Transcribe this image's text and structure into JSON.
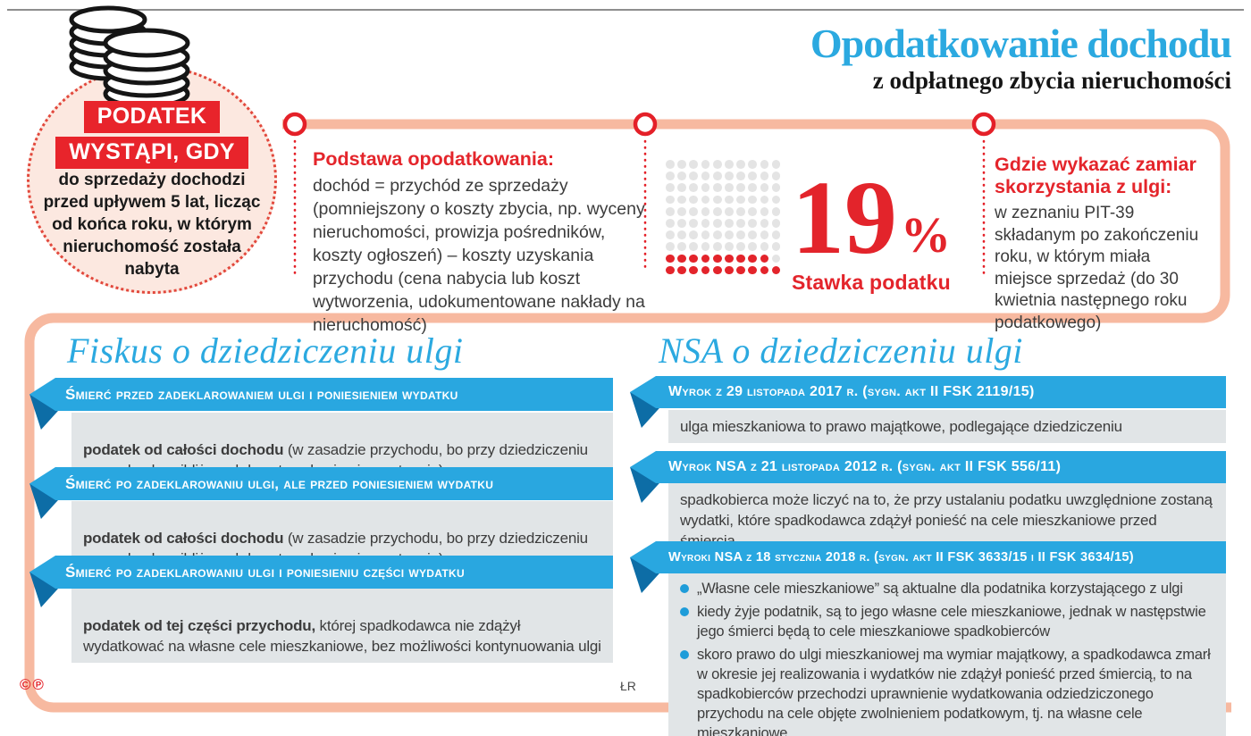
{
  "meta": {
    "copyright": "©℗",
    "credit": "ŁR"
  },
  "header": {
    "title": "Opodatkowanie dochodu",
    "subtitle": "z odpłatnego zbycia nieruchomości"
  },
  "tax_trigger": {
    "label_line1": "PODATEK",
    "label_line2": "WYSTĄPI, GDY",
    "text": "do sprzedaży dochodzi\nprzed upływem 5 lat, licząc\nod końca roku, w którym\nnieruchomość została\nnabyta"
  },
  "tax_base": {
    "heading": "Podstawa opodatkowania:",
    "body": "dochód = przychód ze sprzedaży (pomniejszony o koszty zbycia, np. wyceny nieruchomości, prowizja pośredników, koszty ogłoszeń) – koszty uzyskania przychodu (cena nabycia lub koszt wytworzenia, udokumentowane nakłady na nieruchomość)"
  },
  "tax_rate": {
    "value": "19",
    "unit": "%",
    "label": "Stawka podatku"
  },
  "where_to_declare": {
    "heading": "Gdzie wykazać zamiar\nskorzystania z ulgi:",
    "body": "w zeznaniu PIT-39 składanym po zakończeniu roku, w którym miała miejsce sprzedaż (do 30 kwietnia następnego roku podatkowego)"
  },
  "chart_data": {
    "type": "pictogram",
    "title": "Stawka podatku",
    "label": "19%",
    "value": 19,
    "total": 100,
    "grid": {
      "rows": 10,
      "cols": 10
    },
    "fill_from": "bottom-left",
    "colors": {
      "highlighted": "#E3242B",
      "base": "#E4E4E4"
    }
  },
  "fiskus": {
    "title": "Fiskus o dziedziczeniu ulgi",
    "items": [
      {
        "banner": "Śmierć przed zadeklarowaniem ulgi i poniesieniem wydatku",
        "bold": "podatek od całości dochodu",
        "rest": " (w zasadzie przychodu, bo przy dziedziczeniu po osobach najbliższych koszty nabycia nie występują)"
      },
      {
        "banner": "Śmierć po zadeklarowaniu ulgi, ale przed poniesieniem wydatku",
        "bold": "podatek od całości dochodu",
        "rest": " (w zasadzie przychodu, bo przy dziedziczeniu po osobach najbliższych koszty nabycia nie występują)"
      },
      {
        "banner": "Śmierć po zadeklarowaniu ulgi i poniesieniu części wydatku",
        "bold": "podatek od tej części przychodu,",
        "rest": " której spadkodawca nie zdążył wydatkować na własne cele mieszkaniowe, bez możliwości kontynuowania ulgi"
      }
    ]
  },
  "nsa": {
    "title": "NSA o dziedziczeniu ulgi",
    "items": [
      {
        "banner": "Wyrok z 29 listopada 2017 r. (sygn. akt II FSK 2119/15)",
        "text": "ulga mieszkaniowa to prawo majątkowe, podlegające dziedziczeniu"
      },
      {
        "banner": "Wyrok NSA z 21 listopada 2012 r. (sygn. akt II FSK 556/11)",
        "text": "spadkobierca może liczyć na to, że przy ustalaniu podatku uwzględnione zostaną wydatki, które spadkodawca zdążył ponieść na cele mieszkaniowe przed śmiercią"
      },
      {
        "banner": "Wyroki NSA z 18 stycznia 2018 r. (sygn. akt II FSK 3633/15 i II FSK 3634/15)",
        "bullets": [
          "„Własne cele mieszkaniowe” są aktualne dla podatnika korzystającego z ulgi",
          "kiedy żyje podatnik, są to jego własne cele mieszkaniowe, jednak w następstwie jego śmierci będą to cele mieszkaniowe spadkobierców",
          "skoro prawo do ulgi mieszkaniowej ma wymiar majątkowy, a spadkodawca zmarł w okresie jej realizowania i wydatków nie zdążył ponieść przed śmiercią, to na spadkobierców przechodzi uprawnienie wydatkowania odziedziczonego przychodu na cele objęte zwolnieniem podatkowym, tj. na własne cele mieszkaniowe"
        ]
      }
    ]
  },
  "colors": {
    "accent_blue": "#29A7E0",
    "dark_blue": "#0D6DA6",
    "accent_red": "#E3242B",
    "salmon_band": "#F7B9A0",
    "pink_fill": "#FCE8E0",
    "gray_box": "#E1E5E7"
  }
}
